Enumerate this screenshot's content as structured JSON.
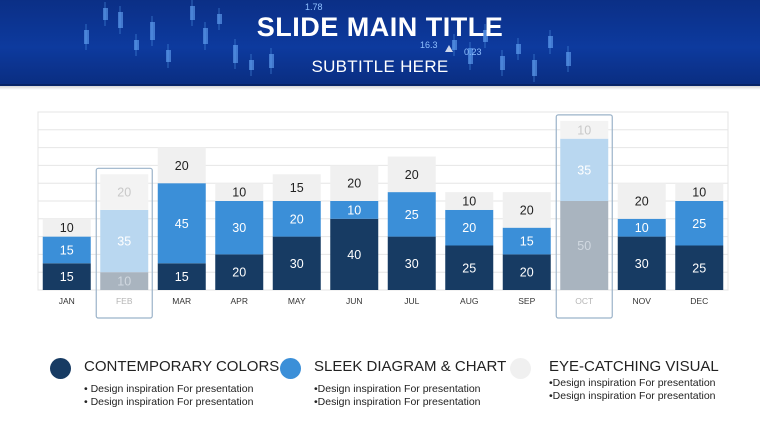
{
  "slide": {
    "title": "SLIDE MAIN TITLE",
    "subtitle": "SUBTITLE HERE",
    "banner_numbers": [
      "1.78",
      "16.3",
      "0.23"
    ]
  },
  "colors": {
    "dark": "#173b63",
    "mid": "#3b8fd8",
    "light": "#f0f0f0",
    "faded_dark": "#a9b4bf",
    "faded_mid": "#b9d7f0",
    "faded_light": "#f3f3f3",
    "highlight_border": "#9bb3c9"
  },
  "chart_data": {
    "type": "bar",
    "stacked": true,
    "categories": [
      "JAN",
      "FEB",
      "MAR",
      "APR",
      "MAY",
      "JUN",
      "JUL",
      "AUG",
      "SEP",
      "OCT",
      "NOV",
      "DEC"
    ],
    "series": [
      {
        "name": "CONTEMPORARY COLORS",
        "values": [
          15,
          10,
          15,
          20,
          30,
          40,
          30,
          25,
          20,
          50,
          30,
          25
        ]
      },
      {
        "name": "SLEEK DIAGRAM & CHART",
        "values": [
          15,
          35,
          45,
          30,
          20,
          10,
          25,
          20,
          15,
          35,
          10,
          25
        ]
      },
      {
        "name": "EYE-CATCHING VISUAL",
        "values": [
          10,
          20,
          20,
          10,
          15,
          20,
          20,
          10,
          20,
          10,
          20,
          10
        ]
      }
    ],
    "highlighted_categories": [
      "FEB",
      "OCT"
    ],
    "ylim": [
      0,
      100
    ],
    "grid": true
  },
  "legend": [
    {
      "label": "CONTEMPORARY COLORS",
      "color": "#173b63",
      "bullets": [
        "• Design inspiration For presentation",
        "• Design inspiration For presentation"
      ]
    },
    {
      "label": "SLEEK DIAGRAM & CHART",
      "color": "#3b8fd8",
      "bullets": [
        "•Design inspiration For presentation",
        "•Design inspiration For presentation"
      ]
    },
    {
      "label": "EYE-CATCHING VISUAL",
      "color": "#f0f0f0",
      "bullets": [
        "•Design inspiration For presentation",
        "•Design inspiration For presentation"
      ]
    }
  ]
}
